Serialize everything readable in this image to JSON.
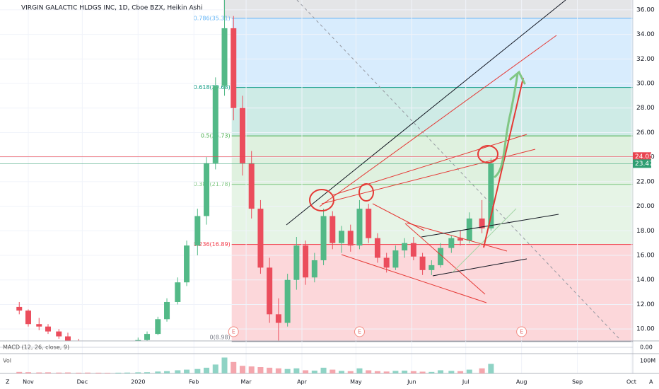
{
  "header": {
    "title": "VIRGIN GALACTIC HLDGS INC, 1D, Cboe BZX, Heikin Ashi"
  },
  "chart_data": {
    "type": "candlestick",
    "x": [
      -5,
      0,
      6,
      11,
      17,
      22,
      28,
      33,
      39,
      44,
      50,
      55,
      61,
      66,
      72,
      77,
      83,
      88,
      94,
      99,
      104,
      109,
      114,
      119,
      124,
      129,
      134,
      139,
      144,
      149,
      154,
      159,
      164,
      169,
      174,
      179,
      184,
      189,
      194,
      199,
      204,
      209,
      214,
      219,
      224,
      229,
      235,
      240,
      245,
      252,
      257
    ],
    "open": [
      11.8,
      11.5,
      10.4,
      10.2,
      9.8,
      9.4,
      9.0,
      8.6,
      8.3,
      8.2,
      8.0,
      8.4,
      8.6,
      9.1,
      9.6,
      10.8,
      12.2,
      13.8,
      16.8,
      19.2,
      23.5,
      29.8,
      34.5,
      28.0,
      23.5,
      19.8,
      15.0,
      11.2,
      10.5,
      14.0,
      16.8,
      14.2,
      15.6,
      19.2,
      17.0,
      18.0,
      16.8,
      19.8,
      17.4,
      15.8,
      15.0,
      16.4,
      17.0,
      15.9,
      14.8,
      15.2,
      16.6,
      17.4,
      17.2,
      19.0,
      18.2
    ],
    "high": [
      12.2,
      11.6,
      10.9,
      10.4,
      10.0,
      9.7,
      9.2,
      8.9,
      8.6,
      8.5,
      8.6,
      8.8,
      9.3,
      9.8,
      11.0,
      12.5,
      14.2,
      17.2,
      19.8,
      24.0,
      30.5,
      37.0,
      35.5,
      29.0,
      24.5,
      20.5,
      15.8,
      12.5,
      14.5,
      17.5,
      17.2,
      16.2,
      19.8,
      19.6,
      18.4,
      18.5,
      20.5,
      20.2,
      17.8,
      16.2,
      16.8,
      17.4,
      17.5,
      16.2,
      15.6,
      17.0,
      17.6,
      18.0,
      19.5,
      20.5,
      23.9
    ],
    "low": [
      11.2,
      10.2,
      9.9,
      9.6,
      9.2,
      8.8,
      8.4,
      8.0,
      7.9,
      7.8,
      7.9,
      8.2,
      8.5,
      9.0,
      9.5,
      10.6,
      12.0,
      13.5,
      16.0,
      18.5,
      23.0,
      29.0,
      27.0,
      22.5,
      19.0,
      14.5,
      10.5,
      8.98,
      10.2,
      13.2,
      13.6,
      13.8,
      15.2,
      16.5,
      16.2,
      16.3,
      16.5,
      17.0,
      15.4,
      14.6,
      14.8,
      15.8,
      15.6,
      14.4,
      14.4,
      15.0,
      16.2,
      16.8,
      17.0,
      17.8,
      18.0
    ],
    "close": [
      11.5,
      10.4,
      10.2,
      9.8,
      9.4,
      9.0,
      8.6,
      8.3,
      8.2,
      8.0,
      8.4,
      8.6,
      9.1,
      9.6,
      10.8,
      12.2,
      13.8,
      16.8,
      19.2,
      23.5,
      29.8,
      34.5,
      28.0,
      23.5,
      19.8,
      15.0,
      11.2,
      10.5,
      14.0,
      16.8,
      14.2,
      15.6,
      19.2,
      17.0,
      18.0,
      16.8,
      19.8,
      17.4,
      15.8,
      15.0,
      16.4,
      17.0,
      15.9,
      14.8,
      15.2,
      16.6,
      17.4,
      17.2,
      19.0,
      18.2,
      23.47
    ],
    "up_color": "#53b987",
    "down_color": "#eb4d5c",
    "xlim": [
      -15.7,
      335.8
    ],
    "xticks": [
      {
        "value": 0,
        "label": "Nov"
      },
      {
        "value": 30,
        "label": "Dec"
      },
      {
        "value": 61,
        "label": "2020"
      },
      {
        "value": 92,
        "label": "Feb"
      },
      {
        "value": 121,
        "label": "Mar"
      },
      {
        "value": 152,
        "label": "Apr"
      },
      {
        "value": 182,
        "label": "May"
      },
      {
        "value": 213,
        "label": "Jun"
      },
      {
        "value": 243,
        "label": "Jul"
      },
      {
        "value": 274,
        "label": "Aug"
      },
      {
        "value": 305,
        "label": "Sep"
      },
      {
        "value": 335,
        "label": "Oct"
      }
    ],
    "ylim": [
      9.03,
      36.8
    ],
    "yticks": [
      {
        "value": 10,
        "label": "10.00"
      },
      {
        "value": 12,
        "label": "12.00"
      },
      {
        "value": 14,
        "label": "14.00"
      },
      {
        "value": 16,
        "label": "16.00"
      },
      {
        "value": 18,
        "label": "18.00"
      },
      {
        "value": 20,
        "label": "20.00"
      },
      {
        "value": 22,
        "label": "22.00"
      },
      {
        "value": 24,
        "label": "24.00"
      },
      {
        "value": 26,
        "label": "26.00"
      },
      {
        "value": 28,
        "label": "28.00"
      },
      {
        "value": 30,
        "label": "30.00"
      },
      {
        "value": 32,
        "label": "32.00"
      },
      {
        "value": 34,
        "label": "34.00"
      },
      {
        "value": 36,
        "label": "36.00"
      }
    ],
    "grid": true,
    "price_tags": [
      {
        "value": 24.05,
        "label": "24.05",
        "color": "#e9434f"
      },
      {
        "value": 23.47,
        "label": "23.47",
        "color": "#2e9e72"
      }
    ],
    "fib_start": 113,
    "fib_levels": [
      {
        "value": 35.31,
        "label": "0.786(35.31)",
        "color": "#64b5f6",
        "fill": "rgba(100,181,246,0.25)"
      },
      {
        "value": 29.68,
        "label": "0.618(29.68)",
        "color": "#089981",
        "fill": "rgba(8,153,129,0.2)"
      },
      {
        "value": 25.73,
        "label": "0.5(25.73)",
        "color": "#4caf50",
        "fill": "rgba(76,175,80,0.18)"
      },
      {
        "value": 21.78,
        "label": "0.382(21.78)",
        "color": "#81c784",
        "fill": "rgba(129,199,132,0.2)"
      },
      {
        "value": 16.89,
        "label": "0.236(16.89)",
        "color": "#f23645",
        "fill": "rgba(242,54,69,0.2)"
      },
      {
        "value": 8.98,
        "label": "0(8.98)",
        "color": "#787b86",
        "fill": "none"
      }
    ],
    "earnings": {
      "x": [
        114,
        184,
        274
      ],
      "labels": [
        "E",
        "E",
        "E"
      ]
    },
    "macd": {
      "label": "MACD (12, 26, close, 9)",
      "yticks": [
        {
          "value": 0,
          "label": "0.00"
        }
      ],
      "ylim": [
        -1,
        1
      ]
    },
    "volume": {
      "label": "Vol",
      "values": [
        12,
        10,
        8,
        9,
        7,
        8,
        6,
        7,
        6,
        5,
        6,
        7,
        9,
        10,
        15,
        18,
        25,
        30,
        35,
        45,
        70,
        125,
        90,
        60,
        55,
        50,
        45,
        40,
        35,
        40,
        25,
        22,
        45,
        30,
        20,
        18,
        40,
        25,
        18,
        15,
        20,
        22,
        18,
        14,
        12,
        25,
        20,
        18,
        30,
        40,
        75
      ],
      "ylim": [
        0,
        155.6
      ],
      "yticks": [
        {
          "value": 100,
          "label": "100M"
        }
      ]
    }
  },
  "footer": {
    "left": "Z",
    "right": "A"
  }
}
